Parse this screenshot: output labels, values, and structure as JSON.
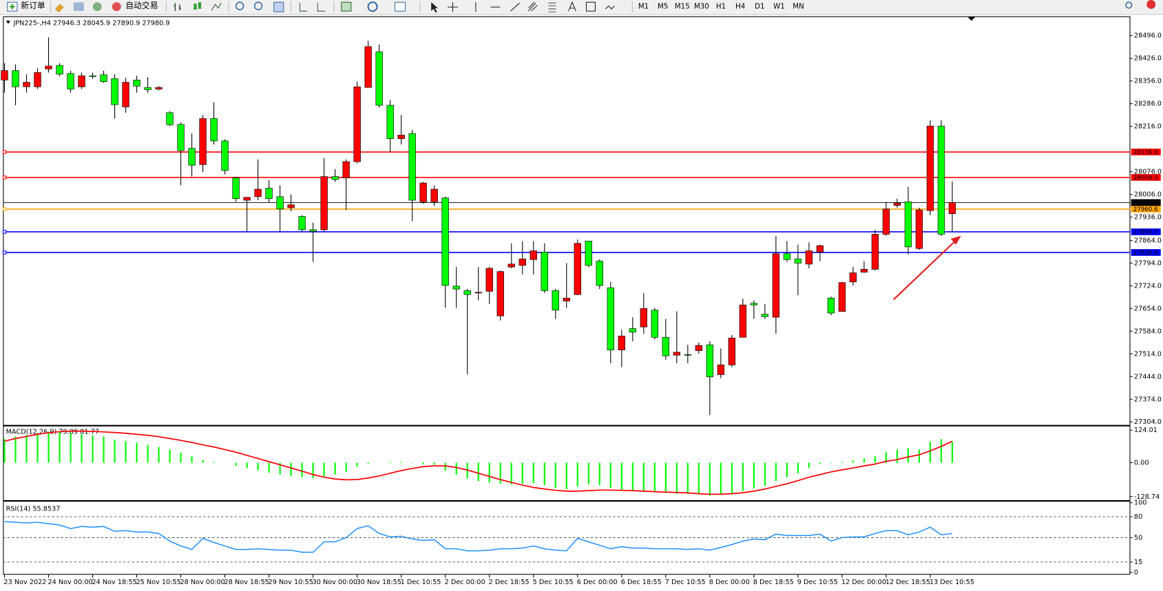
{
  "toolbar": {
    "new_order": "新订单",
    "auto_trading": "自动交易",
    "timeframes": [
      "M1",
      "M5",
      "M15",
      "M30",
      "H1",
      "H4",
      "D1",
      "W1",
      "MN"
    ]
  },
  "chart_data": [
    {
      "type": "candlestick",
      "title": "JPN225-,H4",
      "up_color": "#ff0000",
      "down_color": "#00ff00",
      "bid_color": "#000000",
      "ylim": [
        27297.1,
        28555.5
      ],
      "yticks": [
        {
          "value": 28496,
          "label": "28496.0"
        },
        {
          "value": 28426,
          "label": "28426.0"
        },
        {
          "value": 28356,
          "label": "28356.0"
        },
        {
          "value": 28286,
          "label": "28286.0"
        },
        {
          "value": 28216,
          "label": "28216.0"
        },
        {
          "value": 28076,
          "label": "28076.0"
        },
        {
          "value": 28006,
          "label": "28006.0"
        },
        {
          "value": 27936,
          "label": "27936.0"
        },
        {
          "value": 27864,
          "label": "27864.0"
        },
        {
          "value": 27794,
          "label": "27794.0"
        },
        {
          "value": 27724,
          "label": "27724.0"
        },
        {
          "value": 27654,
          "label": "27654.0"
        },
        {
          "value": 27584,
          "label": "27584.0"
        },
        {
          "value": 27514,
          "label": "27514.0"
        },
        {
          "value": 27444,
          "label": "27444.0"
        },
        {
          "value": 27374,
          "label": "27374.0"
        },
        {
          "value": 27304,
          "label": "27304.0"
        }
      ],
      "levels": [
        {
          "value": 28136.9,
          "color": "#ff0000"
        },
        {
          "value": 28058.3,
          "color": "#ff0000"
        },
        {
          "value": 27960.6,
          "color": "#ffa500"
        },
        {
          "value": 27890.5,
          "color": "#0000ff"
        },
        {
          "value": 27826.8,
          "color": "#0000ff"
        }
      ],
      "categories": [
        "23 Nov 2022",
        null,
        null,
        null,
        "24 Nov 00:00",
        null,
        null,
        null,
        "24 Nov 18:55",
        null,
        null,
        null,
        "25 Nov 10:55",
        null,
        null,
        null,
        "28 Nov 00:00",
        null,
        null,
        null,
        "28 Nov 18:55",
        null,
        null,
        null,
        "29 Nov 10:55",
        null,
        null,
        null,
        "30 Nov 00:00",
        null,
        null,
        null,
        "30 Nov 18:55",
        null,
        null,
        null,
        "1 Dec 10:55",
        null,
        null,
        null,
        "2 Dec 00:00",
        null,
        null,
        null,
        "2 Dec 18:55",
        null,
        null,
        null,
        "5 Dec 10:55",
        null,
        null,
        null,
        "6 Dec 00:00",
        null,
        null,
        null,
        "6 Dec 18:55",
        null,
        null,
        null,
        "7 Dec 10:55",
        null,
        null,
        null,
        "8 Dec 00:00",
        null,
        null,
        null,
        "8 Dec 18:55",
        null,
        null,
        null,
        "9 Dec 10:55",
        null,
        null,
        null,
        "12 Dec 00:00",
        null,
        null,
        null,
        "12 Dec 18:55",
        null,
        null,
        null,
        "13 Dec 10:55",
        null,
        null
      ],
      "candles": [
        [
          28359,
          28411,
          28320,
          28388
        ],
        [
          28388,
          28407,
          28281,
          28338
        ],
        [
          28338,
          28377,
          28320,
          28352
        ],
        [
          28338,
          28395,
          28331,
          28382
        ],
        [
          28393,
          28491,
          28382,
          28402
        ],
        [
          28404,
          28411,
          28370,
          28377
        ],
        [
          28379,
          28388,
          28320,
          28331
        ],
        [
          28338,
          28382,
          28331,
          28372
        ],
        [
          28372,
          28382,
          28363,
          28370
        ],
        [
          28375,
          28388,
          28350,
          28354
        ],
        [
          28363,
          28377,
          28240,
          28283
        ],
        [
          28276,
          28366,
          28258,
          28352
        ],
        [
          28359,
          28372,
          28320,
          28340
        ],
        [
          28336,
          28368,
          28320,
          28329
        ],
        [
          28331,
          28340,
          28327,
          28336
        ],
        [
          28258,
          28263,
          28217,
          28221
        ],
        [
          28222,
          28228,
          28034,
          28141
        ],
        [
          28148,
          28194,
          28061,
          28096
        ],
        [
          28098,
          28251,
          28075,
          28240
        ],
        [
          28240,
          28290,
          28160,
          28171
        ],
        [
          28171,
          28176,
          28068,
          28080
        ],
        [
          28057,
          28061,
          27983,
          27993
        ],
        [
          27988,
          27997,
          27892,
          27997
        ],
        [
          27999,
          28114,
          27988,
          28022
        ],
        [
          28025,
          28050,
          27981,
          27993
        ],
        [
          27999,
          28034,
          27892,
          27961
        ],
        [
          27965,
          28006,
          27954,
          27974
        ],
        [
          27938,
          27942,
          27892,
          27897
        ],
        [
          27897,
          27919,
          27798,
          27892
        ],
        [
          27897,
          28118,
          27892,
          28061
        ],
        [
          28061,
          28084,
          28045,
          28052
        ],
        [
          28057,
          28114,
          27958,
          28107
        ],
        [
          28107,
          28354,
          28102,
          28338
        ],
        [
          28336,
          28480,
          28336,
          28462
        ],
        [
          28446,
          28469,
          28274,
          28281
        ],
        [
          28281,
          28297,
          28137,
          28178
        ],
        [
          28178,
          28251,
          28160,
          28189
        ],
        [
          28194,
          28205,
          27924,
          27988
        ],
        [
          27983,
          28045,
          27977,
          28041
        ],
        [
          27983,
          28034,
          27970,
          28022
        ],
        [
          27995,
          27999,
          27656,
          27725
        ],
        [
          27723,
          27782,
          27656,
          27714
        ],
        [
          27709,
          27714,
          27451,
          27697
        ],
        [
          27702,
          27782,
          27679,
          27704
        ],
        [
          27707,
          27782,
          27668,
          27778
        ],
        [
          27631,
          27771,
          27617,
          27768
        ],
        [
          27782,
          27855,
          27778,
          27791
        ],
        [
          27787,
          27862,
          27759,
          27807
        ],
        [
          27805,
          27862,
          27759,
          27832
        ],
        [
          27828,
          27855,
          27702,
          27709
        ],
        [
          27709,
          27714,
          27622,
          27649
        ],
        [
          27677,
          27794,
          27656,
          27686
        ],
        [
          27697,
          27867,
          27695,
          27855
        ],
        [
          27862,
          27862,
          27782,
          27787
        ],
        [
          27800,
          27805,
          27714,
          27725
        ],
        [
          27718,
          27736,
          27485,
          27526
        ],
        [
          27526,
          27588,
          27473,
          27569
        ],
        [
          27592,
          27627,
          27553,
          27581
        ],
        [
          27597,
          27702,
          27576,
          27654
        ],
        [
          27649,
          27656,
          27558,
          27565
        ],
        [
          27565,
          27622,
          27496,
          27508
        ],
        [
          27510,
          27645,
          27485,
          27519
        ],
        [
          27512,
          27542,
          27485,
          27512
        ],
        [
          27524,
          27549,
          27514,
          27540
        ],
        [
          27542,
          27553,
          27325,
          27443
        ],
        [
          27450,
          27531,
          27439,
          27480
        ],
        [
          27480,
          27572,
          27473,
          27563
        ],
        [
          27565,
          27684,
          27565,
          27665
        ],
        [
          27670,
          27679,
          27622,
          27665
        ],
        [
          27636,
          27668,
          27622,
          27629
        ],
        [
          27627,
          27878,
          27576,
          27823
        ],
        [
          27823,
          27862,
          27798,
          27805
        ],
        [
          27807,
          27851,
          27695,
          27794
        ],
        [
          27791,
          27858,
          27778,
          27832
        ],
        [
          27828,
          27851,
          27800,
          27848
        ],
        [
          27686,
          27691,
          27633,
          27640
        ],
        [
          27645,
          27736,
          27643,
          27734
        ],
        [
          27736,
          27782,
          27725,
          27764
        ],
        [
          27766,
          27800,
          27764,
          27775
        ],
        [
          27775,
          27897,
          27771,
          27883
        ],
        [
          27883,
          27983,
          27878,
          27961
        ],
        [
          27972,
          27993,
          27965,
          27979
        ],
        [
          27983,
          28029,
          27821,
          27844
        ],
        [
          27839,
          27965,
          27835,
          27958
        ],
        [
          27956,
          28235,
          27942,
          28217
        ],
        [
          28217,
          28235,
          27878,
          27883
        ],
        [
          27946.3,
          28045.9,
          27890.9,
          27980.9
        ]
      ]
    },
    {
      "type": "macd",
      "title": "MACD(12,26,9)",
      "ylim": [
        -135.3,
        132.5
      ],
      "yticks": [
        124.01,
        {
          "value": 0,
          "label": "0.00"
        },
        -128.74
      ],
      "series": [
        {
          "kind": "bar",
          "color": "#00ff00",
          "values": [
            90,
            100,
            105,
            112,
            118,
            115,
            112,
            108,
            105,
            100,
            87,
            82,
            76,
            68,
            60,
            50,
            38,
            25,
            10,
            3,
            0,
            -12,
            -20,
            -28,
            -38,
            -45,
            -50,
            -55,
            -58,
            -52,
            -45,
            -35,
            -15,
            -5,
            0,
            3,
            3,
            -2,
            -6,
            -8,
            -30,
            -45,
            -60,
            -70,
            -75,
            -80,
            -82,
            -80,
            -78,
            -85,
            -95,
            -100,
            -90,
            -82,
            -85,
            -95,
            -105,
            -108,
            -108,
            -110,
            -115,
            -118,
            -118,
            -118,
            -125,
            -122,
            -118,
            -108,
            -98,
            -88,
            -70,
            -55,
            -40,
            -20,
            -5,
            -2,
            3,
            8,
            15,
            25,
            40,
            50,
            55,
            50,
            80,
            90,
            79.89
          ]
        },
        {
          "kind": "line",
          "color": "#ff0000",
          "values": [
            82,
            92,
            100,
            108,
            114,
            118,
            120,
            120,
            119,
            117,
            115,
            112,
            108,
            104,
            99,
            92,
            85,
            77,
            68,
            60,
            50,
            40,
            28,
            16,
            4,
            -8,
            -20,
            -32,
            -45,
            -55,
            -62,
            -65,
            -64,
            -58,
            -50,
            -40,
            -30,
            -22,
            -15,
            -12,
            -12,
            -18,
            -28,
            -40,
            -52,
            -64,
            -75,
            -85,
            -94,
            -100,
            -105,
            -108,
            -108,
            -106,
            -104,
            -104,
            -105,
            -106,
            -108,
            -110,
            -112,
            -113,
            -115,
            -118,
            -120,
            -120,
            -118,
            -114,
            -108,
            -100,
            -90,
            -80,
            -68,
            -55,
            -45,
            -35,
            -27,
            -20,
            -12,
            -5,
            5,
            12,
            22,
            30,
            45,
            62,
            81.77
          ]
        }
      ]
    },
    {
      "type": "line",
      "title": "RSI(14)",
      "ylim": [
        0,
        100
      ],
      "yticks": [
        100,
        80,
        50,
        15,
        0
      ],
      "grid": "dashed",
      "series": [
        {
          "color": "#1e90ff",
          "values": [
            73,
            72,
            71,
            72,
            70,
            68,
            63,
            66,
            65,
            66,
            59,
            60,
            58,
            58,
            56,
            45,
            38,
            33,
            49,
            43,
            38,
            33,
            33,
            34,
            33,
            32,
            32,
            29,
            29,
            44,
            44,
            50,
            63,
            67,
            56,
            51,
            52,
            48,
            46,
            47,
            34,
            34,
            31,
            31,
            32,
            34,
            34,
            35,
            38,
            34,
            32,
            31,
            49,
            44,
            39,
            34,
            37,
            35,
            35,
            34,
            34,
            34,
            33,
            34,
            32,
            36,
            40,
            45,
            48,
            47,
            55,
            53,
            53,
            53,
            55,
            45,
            50,
            51,
            51,
            56,
            60,
            60,
            54,
            58,
            65,
            54,
            55.8537
          ]
        }
      ]
    }
  ]
}
